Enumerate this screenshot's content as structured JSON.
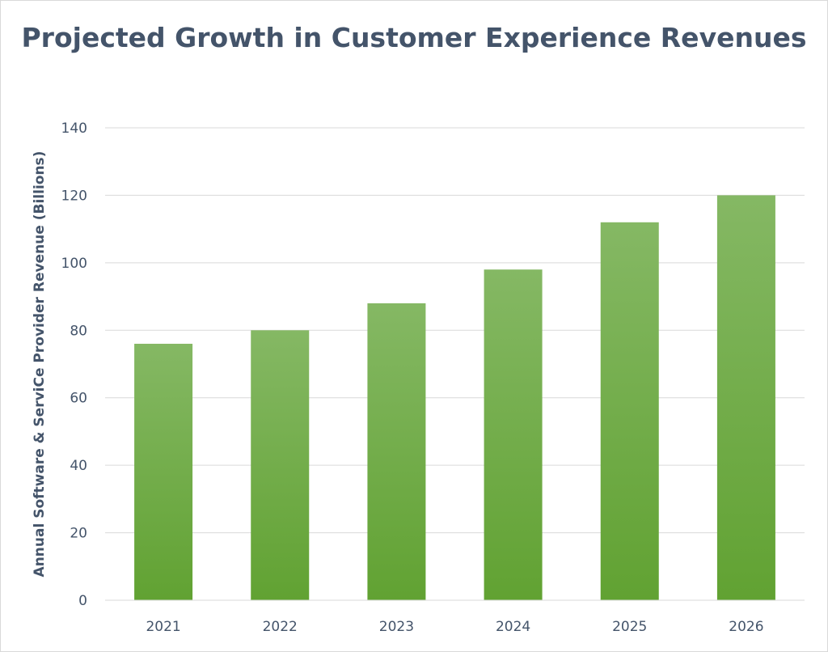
{
  "chart_data": {
    "type": "bar",
    "title": "Projected Growth in Customer Experience Revenues",
    "xlabel": "",
    "ylabel": "Annual Software & ServiCe Provider Revenue (Billions)",
    "categories": [
      "2021",
      "2022",
      "2023",
      "2024",
      "2025",
      "2026"
    ],
    "values": [
      76,
      80,
      88,
      98,
      112,
      120
    ],
    "ylim": [
      0,
      140
    ],
    "yticks": [
      0,
      20,
      40,
      60,
      80,
      100,
      120,
      140
    ],
    "grid": true,
    "legend": "none",
    "colors": {
      "bar_top": "#85b864",
      "bar_bottom": "#61a232",
      "text": "#44546a",
      "grid": "#d9d9d9"
    }
  }
}
